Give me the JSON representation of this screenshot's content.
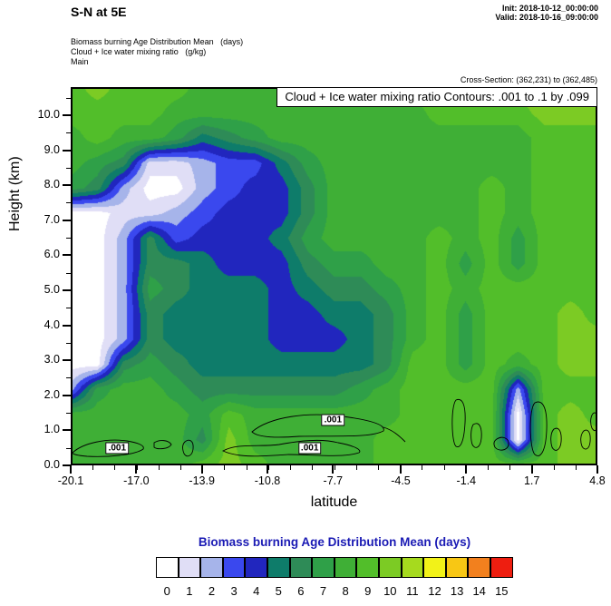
{
  "header": {
    "title": "S-N at 5E",
    "init_label": "Init: 2018-10-12_00:00:00",
    "valid_label": "Valid: 2018-10-16_09:00:00",
    "field_line_1": "Biomass burning Age Distribution Mean   (days)",
    "field_line_2": "Cloud + Ice water mixing ratio   (g/kg)",
    "field_line_3": "Main",
    "cross_section": "Cross-Section: (362,231) to (362,485)"
  },
  "plot": {
    "contour_info": "Cloud + Ice water mixing ratio Contours: .001 to .1 by .099",
    "ylabel": "Height (km)",
    "xlabel": "latitude"
  },
  "legend": {
    "title": "Biomass burning Age Distribution Mean  (days)",
    "title_color": "#1a1ab4",
    "labels": [
      "0",
      "1",
      "2",
      "3",
      "4",
      "5",
      "6",
      "7",
      "8",
      "9",
      "10",
      "11",
      "12",
      "13",
      "14",
      "15"
    ]
  },
  "chart_data": {
    "type": "heatmap",
    "title": "Biomass burning Age Distribution Mean (days), cross-section S-N at 5E",
    "x_name": "latitude",
    "y_name": "Height (km)",
    "x_range": [
      -20.1,
      4.8
    ],
    "y_range": [
      0,
      10.8
    ],
    "value_bins": {
      "min": 0,
      "max": 16,
      "step": 1
    },
    "palette": [
      "#FFFFFF",
      "#E0DEF6",
      "#A6B4EA",
      "#3A48EE",
      "#2126BE",
      "#0E7C6A",
      "#2E8B57",
      "#2FA048",
      "#3FAF36",
      "#52BE2A",
      "#7CCB24",
      "#A6DA1E",
      "#F2F218",
      "#F8C714",
      "#F2801E",
      "#EE1E10"
    ],
    "x_ticks": [
      {
        "label": "-20.1",
        "value": -20.1
      },
      {
        "label": "-17.0",
        "value": -17.0
      },
      {
        "label": "-13.9",
        "value": -13.9
      },
      {
        "label": "-10.8",
        "value": -10.8
      },
      {
        "label": "-7.7",
        "value": -7.7
      },
      {
        "label": "-4.5",
        "value": -4.5
      },
      {
        "label": "-1.4",
        "value": -1.4
      },
      {
        "label": "1.7",
        "value": 1.7
      },
      {
        "label": "4.8",
        "value": 4.8
      }
    ],
    "y_ticks": [
      {
        "label": "10.0",
        "value": 10.0
      },
      {
        "label": "9.0",
        "value": 9.0
      },
      {
        "label": "8.0",
        "value": 8.0
      },
      {
        "label": "7.0",
        "value": 7.0
      },
      {
        "label": "6.0",
        "value": 6.0
      },
      {
        "label": "5.0",
        "value": 5.0
      },
      {
        "label": "4.0",
        "value": 4.0
      },
      {
        "label": "3.0",
        "value": 3.0
      },
      {
        "label": "2.0",
        "value": 2.0
      },
      {
        "label": "1.0",
        "value": 1.0
      },
      {
        "label": "0.0",
        "value": 0.0
      }
    ],
    "grid_lats": [
      -20.1,
      -18.86,
      -17.61,
      -16.37,
      -15.12,
      -13.88,
      -12.63,
      -11.39,
      -10.14,
      -8.9,
      -7.65,
      -6.41,
      -5.16,
      -3.92,
      -2.67,
      -1.43,
      -0.18,
      1.06,
      2.31,
      3.55,
      4.8
    ],
    "grid_heights_km": [
      0,
      0.71,
      1.43,
      2.14,
      2.85,
      3.57,
      4.28,
      4.99,
      5.7,
      6.42,
      7.13,
      7.84,
      8.56,
      9.27,
      9.98,
      10.7
    ],
    "values": [
      [
        8.5,
        8.5,
        8.5,
        8.5,
        8.5,
        9.5,
        10.5,
        9.5,
        8.5,
        8.5,
        8.5,
        8.5,
        9.5,
        9.5,
        9.5,
        9.5,
        9.5,
        9.5,
        9.5,
        10.5,
        10.5
      ],
      [
        8.5,
        8.5,
        8.5,
        8.5,
        8.5,
        6.5,
        10.5,
        8.5,
        8.5,
        8.5,
        8.5,
        8.5,
        9.5,
        9.5,
        9.5,
        9.5,
        9.5,
        0.5,
        9.5,
        10.5,
        10.5
      ],
      [
        8.5,
        8.5,
        8.5,
        8.5,
        8.5,
        7.5,
        9.5,
        8.5,
        8.5,
        8.5,
        8.5,
        8.5,
        8.5,
        9.5,
        9.5,
        9.5,
        9.5,
        0.5,
        9.5,
        10.5,
        9.5
      ],
      [
        2.5,
        7.5,
        8.5,
        8.5,
        7.5,
        6.5,
        6.5,
        6.5,
        6.5,
        6.5,
        6.5,
        7.5,
        8.5,
        9.5,
        9.5,
        9.5,
        9.5,
        2.5,
        9.5,
        9.5,
        9.5
      ],
      [
        0.5,
        0.5,
        6.5,
        7.5,
        6.5,
        5.5,
        5.5,
        5.5,
        5.5,
        5.5,
        5.5,
        5.5,
        6.5,
        9.5,
        9.5,
        7.5,
        9.5,
        8.5,
        9.5,
        10.5,
        10.5
      ],
      [
        0.5,
        0.5,
        2.5,
        6.5,
        5.5,
        5.5,
        5.5,
        5.5,
        4.5,
        4.5,
        4.5,
        5.5,
        6.5,
        8.5,
        9.5,
        7.5,
        9.5,
        9.5,
        9.5,
        10.5,
        10.5
      ],
      [
        0.5,
        0.5,
        2.5,
        6.5,
        5.5,
        5.5,
        5.5,
        5.5,
        4.5,
        4.5,
        5.5,
        5.5,
        6.5,
        8.5,
        9.5,
        7.5,
        9.5,
        9.5,
        9.5,
        10.5,
        9.5
      ],
      [
        0.5,
        0.5,
        2.5,
        7.5,
        6.5,
        5.5,
        5.5,
        5.5,
        4.5,
        5.5,
        6.5,
        6.5,
        7.5,
        8.5,
        9.5,
        8.5,
        9.5,
        9.5,
        9.5,
        9.5,
        9.5
      ],
      [
        0.5,
        0.5,
        2.5,
        6.5,
        6.5,
        5.5,
        4.5,
        4.5,
        4.5,
        6.5,
        7.5,
        7.5,
        8.5,
        8.5,
        9.5,
        7.5,
        9.5,
        7.5,
        9.5,
        9.5,
        9.5
      ],
      [
        0.5,
        0.5,
        2.5,
        6.5,
        3.5,
        4.5,
        4.5,
        4.5,
        5.5,
        7.5,
        8.5,
        8.5,
        8.5,
        8.5,
        9.5,
        8.5,
        9.5,
        7.5,
        9.5,
        9.5,
        9.5
      ],
      [
        0.5,
        0.5,
        1.5,
        1.5,
        2.5,
        3.5,
        4.5,
        4.5,
        4.5,
        6.5,
        8.5,
        8.5,
        8.5,
        8.5,
        8.5,
        8.5,
        9.5,
        8.5,
        9.5,
        9.5,
        9.5
      ],
      [
        7.5,
        6.5,
        2.5,
        0.5,
        0.5,
        2.5,
        3.5,
        4.5,
        4.5,
        6.5,
        8.5,
        8.5,
        8.5,
        8.5,
        8.5,
        8.5,
        9.5,
        8.5,
        9.5,
        9.5,
        9.5
      ],
      [
        8.5,
        7.5,
        6.5,
        1.5,
        1.5,
        2.5,
        3.5,
        3.5,
        5.5,
        7.5,
        8.5,
        8.5,
        8.5,
        8.5,
        8.5,
        8.5,
        8.5,
        8.5,
        9.5,
        9.5,
        9.5
      ],
      [
        8.5,
        9.5,
        8.5,
        8.5,
        7.5,
        5.5,
        6.5,
        7.5,
        8.5,
        8.5,
        8.5,
        8.5,
        8.5,
        8.5,
        8.5,
        8.5,
        8.5,
        8.5,
        9.5,
        9.5,
        9.5
      ],
      [
        9.5,
        9.5,
        9.5,
        9.5,
        8.5,
        8.5,
        8.5,
        8.5,
        8.5,
        8.5,
        8.5,
        8.5,
        8.5,
        8.5,
        9.5,
        9.5,
        9.5,
        9.5,
        10.5,
        10.5,
        10.5
      ],
      [
        9.5,
        10.5,
        9.5,
        9.5,
        9.5,
        8.5,
        8.5,
        8.5,
        8.5,
        8.5,
        8.5,
        8.5,
        9.5,
        9.5,
        9.5,
        10.5,
        10.5,
        10.5,
        10.5,
        10.5,
        10.5
      ]
    ],
    "overlay_contours": {
      "variable": "Cloud + Ice water mixing ratio (g/kg)",
      "levels": ".001 to .1 by .099",
      "labels": [
        {
          "text": ".001",
          "lat": -17.9,
          "height_km": 0.5
        },
        {
          "text": ".001",
          "lat": -7.7,
          "height_km": 1.3
        },
        {
          "text": ".001",
          "lat": -8.8,
          "height_km": 0.5
        }
      ]
    }
  }
}
